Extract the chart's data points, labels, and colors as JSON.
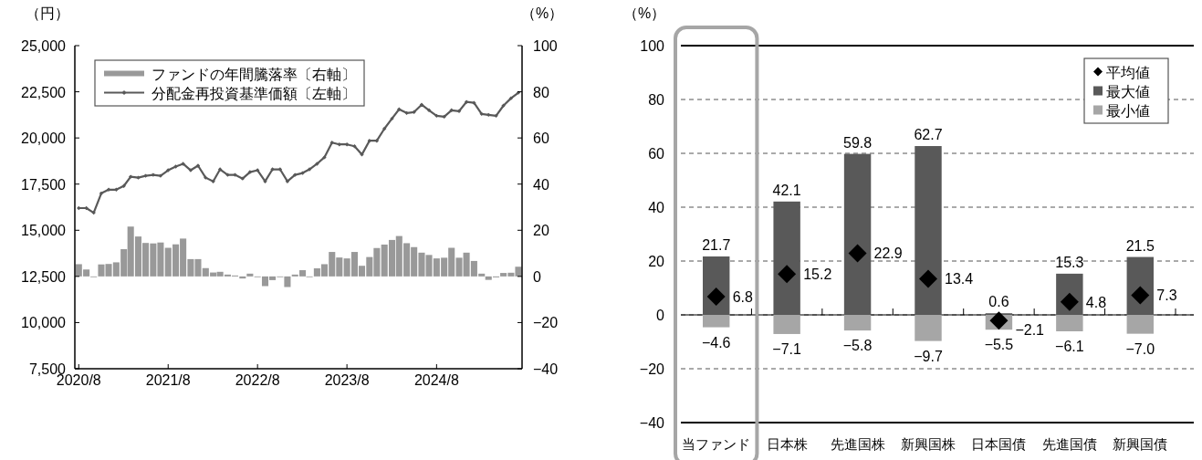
{
  "chart_data": [
    {
      "type": "line",
      "ylabel": "（円）",
      "y2label": "（%）",
      "legend": "top left",
      "x": [
        "2020-08",
        "2020-09",
        "2020-10",
        "2020-11",
        "2020-12",
        "2021-01",
        "2021-02",
        "2021-03",
        "2021-04",
        "2021-05",
        "2021-06",
        "2021-07",
        "2021-08",
        "2021-09",
        "2021-10",
        "2021-11",
        "2021-12",
        "2022-01",
        "2022-02",
        "2022-03",
        "2022-04",
        "2022-05",
        "2022-06",
        "2022-07",
        "2022-08",
        "2022-09",
        "2022-10",
        "2022-11",
        "2022-12",
        "2023-01",
        "2023-02",
        "2023-03",
        "2023-04",
        "2023-05",
        "2023-06",
        "2023-07",
        "2023-08",
        "2023-09",
        "2023-10",
        "2023-11",
        "2023-12",
        "2024-01",
        "2024-02",
        "2024-03",
        "2024-04",
        "2024-05",
        "2024-06",
        "2024-07",
        "2024-08",
        "2024-09",
        "2024-10",
        "2024-11",
        "2024-12",
        "2025-01",
        "2025-02",
        "2025-03",
        "2025-04",
        "2025-05",
        "2025-06",
        "2025-07"
      ],
      "series": [
        {
          "name": "ファンドの年間騰落率〔右軸〕",
          "type": "bar",
          "axis": "y2",
          "color": "#999999",
          "values": [
            5.3,
            3.0,
            -0.2,
            5.2,
            5.4,
            6.1,
            11.8,
            21.6,
            17.3,
            14.5,
            14.3,
            14.7,
            12.4,
            13.9,
            16.4,
            7.5,
            7.5,
            3.6,
            1.7,
            2.0,
            0.8,
            0.4,
            -0.9,
            1.2,
            -0.1,
            -4.2,
            -1.6,
            -0.1,
            -4.6,
            0.8,
            2.7,
            -0.1,
            3.5,
            5.3,
            10.6,
            8.2,
            7.8,
            10.6,
            4.6,
            8.4,
            12.3,
            13.8,
            15.8,
            17.5,
            14.4,
            12.7,
            10.3,
            9.3,
            7.8,
            8.1,
            12.4,
            8.1,
            10.3,
            6.7,
            1.2,
            -1.5,
            -0.4,
            1.5,
            1.6,
            4.2
          ]
        },
        {
          "name": "分配金再投資基準価額〔左軸〕",
          "type": "line",
          "axis": "y",
          "color": "#595959",
          "marker": "diamond",
          "values": [
            16200,
            16200,
            15950,
            17000,
            17200,
            17200,
            17400,
            17900,
            17850,
            17950,
            18000,
            17950,
            18250,
            18450,
            18600,
            18250,
            18500,
            17850,
            17650,
            18300,
            18000,
            18000,
            17800,
            18150,
            18250,
            17650,
            18300,
            18300,
            17650,
            18000,
            18100,
            18300,
            18600,
            18950,
            19750,
            19650,
            19650,
            19550,
            19100,
            19850,
            19850,
            20500,
            21050,
            21550,
            21350,
            21400,
            21800,
            21500,
            21200,
            21150,
            21500,
            21450,
            21950,
            21900,
            21300,
            21250,
            21200,
            21750,
            22150,
            22450
          ]
        }
      ],
      "xlim": [
        "2020-07-16",
        "2025-07-16"
      ],
      "xticks": [
        {
          "value": "2020-08",
          "label": "2020/8"
        },
        {
          "value": "2021-08",
          "label": "2021/8"
        },
        {
          "value": "2022-08",
          "label": "2022/8"
        },
        {
          "value": "2023-08",
          "label": "2023/8"
        },
        {
          "value": "2024-08",
          "label": "2024/8"
        }
      ],
      "ylim": [
        7500,
        25000
      ],
      "yticks": [
        {
          "value": 7500,
          "label": "7,500"
        },
        {
          "value": 10000,
          "label": "10,000"
        },
        {
          "value": 12500,
          "label": "12,500"
        },
        {
          "value": 15000,
          "label": "15,000"
        },
        {
          "value": 17500,
          "label": "17,500"
        },
        {
          "value": 20000,
          "label": "20,000"
        },
        {
          "value": 22500,
          "label": "22,500"
        },
        {
          "value": 25000,
          "label": "25,000"
        }
      ],
      "y2lim": [
        -40,
        100
      ],
      "y2ticks": [
        {
          "value": -40,
          "label": "−40"
        },
        {
          "value": -20,
          "label": "−20"
        },
        0,
        20,
        40,
        60,
        80,
        100
      ]
    },
    {
      "type": "bar",
      "ylabel": "（%）",
      "legend": "top right",
      "grid": "y",
      "stacked": true,
      "categories": [
        "当ファンド",
        "日本株",
        "先進国株",
        "新興国株",
        "日本国債",
        "先進国債",
        "新興国債"
      ],
      "series": [
        {
          "name": "平均値",
          "type": "scatter",
          "marker": "diamond",
          "color": "#000000",
          "values": [
            6.8,
            15.2,
            22.9,
            13.4,
            -2.1,
            4.8,
            7.3
          ],
          "value_labels": [
            "6.8",
            "15.2",
            "22.9",
            "13.4",
            "−2.1",
            "4.8",
            "7.3"
          ]
        },
        {
          "name": "最大値",
          "type": "bar",
          "color": "#595959",
          "values": [
            21.7,
            42.1,
            59.8,
            62.7,
            0.6,
            15.3,
            21.5
          ],
          "value_labels": [
            "21.7",
            "42.1",
            "59.8",
            "62.7",
            "0.6",
            "15.3",
            "21.5"
          ]
        },
        {
          "name": "最小値",
          "type": "bar",
          "color": "#a6a6a6",
          "values": [
            -4.6,
            -7.1,
            -5.8,
            -9.7,
            -5.5,
            -6.1,
            -7.0
          ],
          "value_labels": [
            "−4.6",
            "−7.1",
            "−5.8",
            "−9.7",
            "−5.5",
            "−6.1",
            "−7.0"
          ]
        }
      ],
      "ylim": [
        -40,
        100
      ],
      "yticks": [
        {
          "value": -40,
          "label": "−40"
        },
        {
          "value": -20,
          "label": "−20"
        },
        0,
        20,
        40,
        60,
        80,
        100
      ]
    }
  ]
}
